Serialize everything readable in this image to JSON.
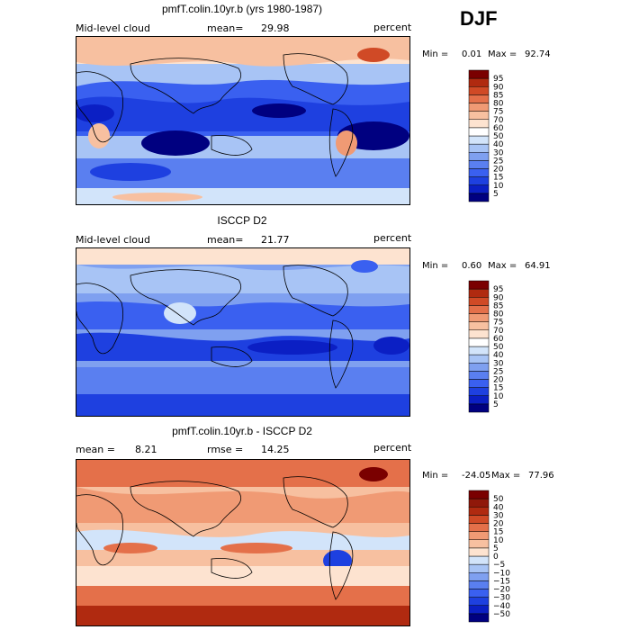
{
  "season": "DJF",
  "panels": [
    {
      "title": "pmfT.colin.10yr.b (yrs 1980-1987)",
      "left_label": "Mid-level cloud",
      "mean_label": "mean=",
      "mean_value": "29.98",
      "units": "percent",
      "min_label": "Min =",
      "min_value": "0.01",
      "max_label": "Max =",
      "max_value": "92.74"
    },
    {
      "title": "ISCCP D2",
      "left_label": "Mid-level cloud",
      "mean_label": "mean=",
      "mean_value": "21.77",
      "units": "percent",
      "min_label": "Min =",
      "min_value": "0.60",
      "max_label": "Max =",
      "max_value": "64.91"
    },
    {
      "title": "pmfT.colin.10yr.b - ISCCP D2",
      "left_label": "mean =",
      "mean_label": "rmse =",
      "left_value": "8.21",
      "mean_value": "14.25",
      "units": "percent",
      "min_label": "Min =",
      "min_value": "-24.05",
      "max_label": "Max =",
      "max_value": "77.96"
    }
  ],
  "chart_data": [
    {
      "type": "heatmap",
      "title": "pmfT.colin.10yr.b (yrs 1980-1987)",
      "variable": "Mid-level cloud",
      "units": "percent",
      "mean": 29.98,
      "min": 0.01,
      "max": 92.74,
      "colorbar_levels": [
        5,
        10,
        15,
        20,
        25,
        30,
        40,
        50,
        60,
        70,
        75,
        80,
        85,
        90,
        95
      ],
      "colorbar_colors": [
        "#000080",
        "#0b1fc4",
        "#1e40e0",
        "#3a60f0",
        "#5a7ff0",
        "#7fa0f0",
        "#a8c4f5",
        "#d2e4fa",
        "#ffffff",
        "#fde3d0",
        "#f7c0a0",
        "#f09a74",
        "#e4704a",
        "#d04a26",
        "#b02a10",
        "#7a0000"
      ]
    },
    {
      "type": "heatmap",
      "title": "ISCCP D2",
      "variable": "Mid-level cloud",
      "units": "percent",
      "mean": 21.77,
      "min": 0.6,
      "max": 64.91,
      "colorbar_levels": [
        5,
        10,
        15,
        20,
        25,
        30,
        40,
        50,
        60,
        70,
        75,
        80,
        85,
        90,
        95
      ],
      "colorbar_colors": [
        "#000080",
        "#0b1fc4",
        "#1e40e0",
        "#3a60f0",
        "#5a7ff0",
        "#7fa0f0",
        "#a8c4f5",
        "#d2e4fa",
        "#ffffff",
        "#fde3d0",
        "#f7c0a0",
        "#f09a74",
        "#e4704a",
        "#d04a26",
        "#b02a10",
        "#7a0000"
      ]
    },
    {
      "type": "heatmap",
      "title": "pmfT.colin.10yr.b - ISCCP D2",
      "units": "percent",
      "mean": 8.21,
      "rmse": 14.25,
      "min": -24.05,
      "max": 77.96,
      "colorbar_levels": [
        -50,
        -40,
        -30,
        -20,
        -15,
        -10,
        -5,
        0,
        5,
        10,
        15,
        20,
        30,
        40,
        50
      ],
      "colorbar_colors": [
        "#000080",
        "#0b1fc4",
        "#1e40e0",
        "#3a60f0",
        "#5a7ff0",
        "#7fa0f0",
        "#a8c4f5",
        "#d2e4fa",
        "#fde3d0",
        "#f7c0a0",
        "#f09a74",
        "#e4704a",
        "#d04a26",
        "#b02a10",
        "#90180a",
        "#7a0000"
      ]
    }
  ]
}
